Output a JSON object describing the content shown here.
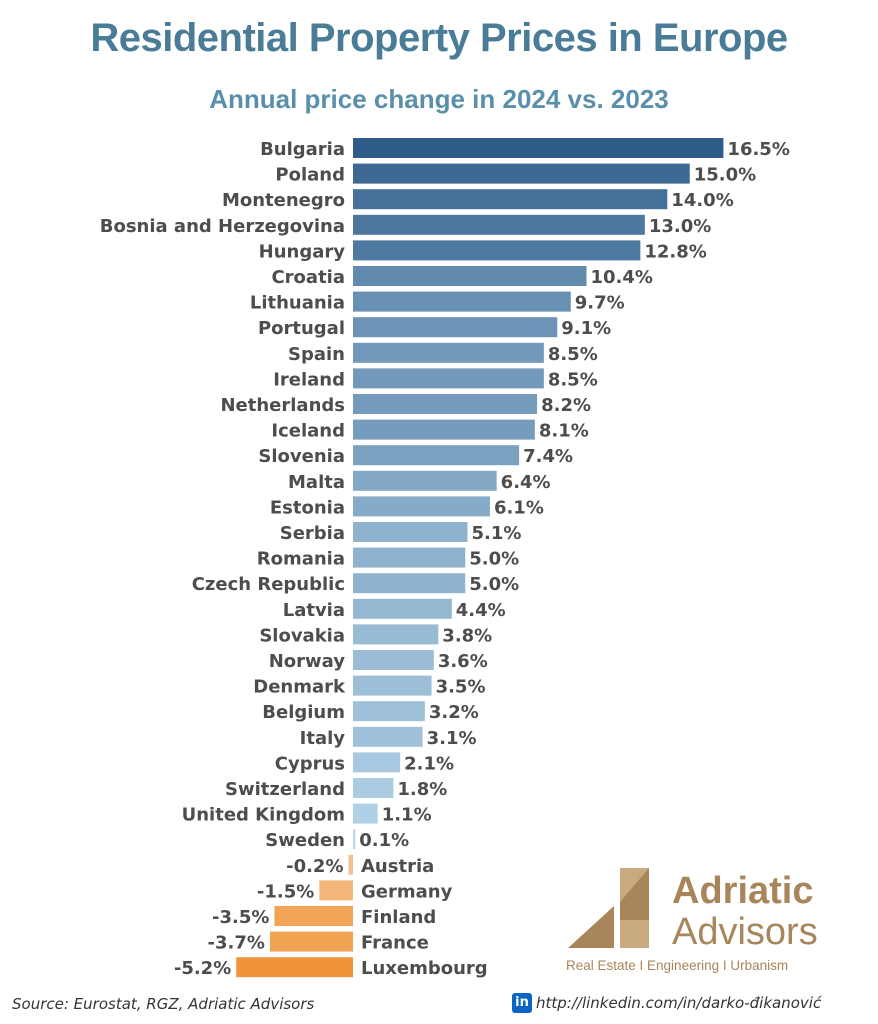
{
  "header": {
    "title": "Residential Property Prices in Europe",
    "subtitle": "Annual price change in 2024 vs. 2023"
  },
  "chart_data": {
    "type": "bar",
    "orientation": "horizontal",
    "title": "Residential Property Prices in Europe",
    "subtitle": "Annual price change in 2024 vs. 2023",
    "xlabel": "",
    "ylabel": "",
    "unit": "%",
    "grid": false,
    "categories": [
      "Bulgaria",
      "Poland",
      "Montenegro",
      "Bosnia and Herzegovina",
      "Hungary",
      "Croatia",
      "Lithuania",
      "Portugal",
      "Spain",
      "Ireland",
      "Netherlands",
      "Iceland",
      "Slovenia",
      "Malta",
      "Estonia",
      "Serbia",
      "Romania",
      "Czech Republic",
      "Latvia",
      "Slovakia",
      "Norway",
      "Denmark",
      "Belgium",
      "Italy",
      "Cyprus",
      "Switzerland",
      "United Kingdom",
      "Sweden",
      "Austria",
      "Germany",
      "Finland",
      "France",
      "Luxembourg"
    ],
    "values": [
      16.5,
      15.0,
      14.0,
      13.0,
      12.8,
      10.4,
      9.7,
      9.1,
      8.5,
      8.5,
      8.2,
      8.1,
      7.4,
      6.4,
      6.1,
      5.1,
      5.0,
      5.0,
      4.4,
      3.8,
      3.6,
      3.5,
      3.2,
      3.1,
      2.1,
      1.8,
      1.1,
      0.1,
      -0.2,
      -1.5,
      -3.5,
      -3.7,
      -5.2
    ],
    "value_labels": [
      "16.5%",
      "15.0%",
      "14.0%",
      "13.0%",
      "12.8%",
      "10.4%",
      "9.7%",
      "9.1%",
      "8.5%",
      "8.5%",
      "8.2%",
      "8.1%",
      "7.4%",
      "6.4%",
      "6.1%",
      "5.1%",
      "5.0%",
      "5.0%",
      "4.4%",
      "3.8%",
      "3.6%",
      "3.5%",
      "3.2%",
      "3.1%",
      "2.1%",
      "1.8%",
      "1.1%",
      "0.1%",
      "-0.2%",
      "-1.5%",
      "-3.5%",
      "-3.7%",
      "-5.2%"
    ],
    "colors": {
      "positive_dark": "#2f5d8a",
      "positive_light": "#b9d8ec",
      "negative_light": "#f2c491",
      "negative_dark": "#f0943a"
    }
  },
  "brand": {
    "name_line1": "Adriatic",
    "name_line2": "Advisors",
    "tagline": "Real Estate I Engineering I Urbanism",
    "color": "#a8865a"
  },
  "footer": {
    "source": "Source: Eurostat, RGZ, Adriatic Advisors",
    "linkedin_icon": "in",
    "link": "http://linkedin.com/in/darko-đikanović"
  }
}
